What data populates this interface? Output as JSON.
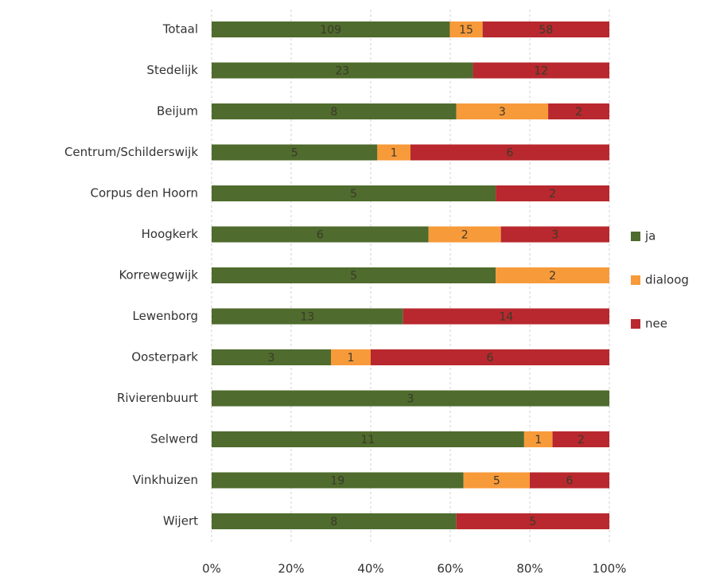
{
  "chart_data": {
    "type": "bar",
    "orientation": "horizontal",
    "stacking": "percent",
    "categories": [
      "Totaal",
      "Stedelijk",
      "Beijum",
      "Centrum/Schilderswijk",
      "Corpus den Hoorn",
      "Hoogkerk",
      "Korrewegwijk",
      "Lewenborg",
      "Oosterpark",
      "Rivierenbuurt",
      "Selwerd",
      "Vinkhuizen",
      "Wijert"
    ],
    "series": [
      {
        "name": "ja",
        "color": "#4f6b2d",
        "values": [
          109,
          23,
          8,
          5,
          5,
          6,
          5,
          13,
          3,
          3,
          11,
          19,
          8
        ]
      },
      {
        "name": "dialoog",
        "color": "#f79a3a",
        "values": [
          15,
          null,
          3,
          1,
          null,
          2,
          2,
          null,
          1,
          null,
          1,
          5,
          null
        ]
      },
      {
        "name": "nee",
        "color": "#b8282e",
        "values": [
          58,
          12,
          2,
          6,
          2,
          3,
          null,
          14,
          6,
          null,
          2,
          6,
          5
        ]
      }
    ],
    "xlim": [
      0,
      100
    ],
    "xticks": [
      {
        "value": 0,
        "label": "0%"
      },
      {
        "value": 20,
        "label": "20%"
      },
      {
        "value": 40,
        "label": "40%"
      },
      {
        "value": 60,
        "label": "60%"
      },
      {
        "value": 80,
        "label": "80%"
      },
      {
        "value": 100,
        "label": "100%"
      }
    ],
    "grid": true,
    "legend": "right"
  }
}
